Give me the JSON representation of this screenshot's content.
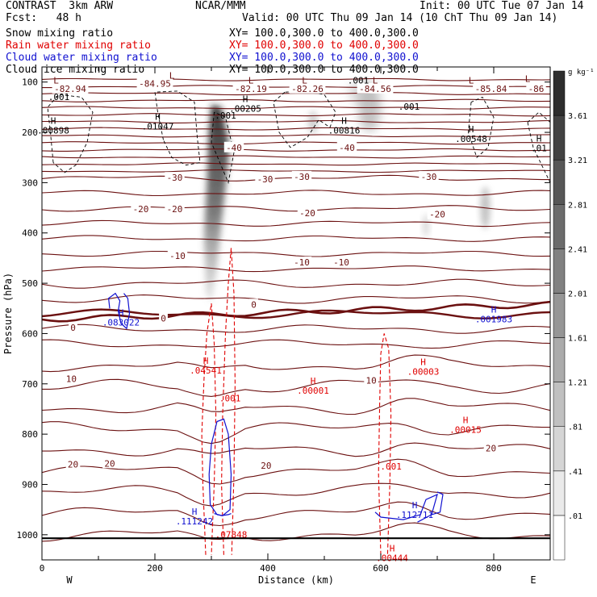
{
  "header": {
    "left": [
      "CONTRAST  3km ARW",
      "Fcst:   48 h"
    ],
    "center": "NCAR/MMM",
    "init": "Init: 00 UTC Tue 07 Jan 14",
    "valid": "Valid: 00 UTC Thu 09 Jan 14 (10 ChT Thu 09 Jan 14)",
    "fields": [
      {
        "name": "Snow mixing ratio",
        "xy": "XY= 100.0,300.0 to 400.0,300.0",
        "color": "#000000"
      },
      {
        "name": "Rain water mixing ratio",
        "xy": "XY= 100.0,300.0 to 400.0,300.0",
        "color": "#e00000"
      },
      {
        "name": "Cloud water mixing ratio",
        "xy": "XY= 100.0,300.0 to 400.0,300.0",
        "color": "#1010d0"
      },
      {
        "name": "Cloud ice mixing ratio",
        "xy": "XY= 100.0,300.0 to 400.0,300.0",
        "color": "#000000"
      }
    ]
  },
  "colors": {
    "temperature": "#6b1010",
    "rain": "#e00000",
    "cloud_water": "#1010d0",
    "ice": "#000000"
  },
  "chart_data": {
    "type": "contour",
    "xlabel": "Distance (km)",
    "ylabel": "Pressure (hPa)",
    "xlim": [
      0,
      900
    ],
    "ylim": [
      1050,
      70
    ],
    "x_ticks": [
      0,
      200,
      400,
      600,
      800
    ],
    "y_ticks": [
      100,
      200,
      300,
      400,
      500,
      600,
      700,
      800,
      900,
      1000
    ],
    "x_end_labels": {
      "left": "W",
      "right": "E"
    },
    "colorbar": {
      "unit": "g kg⁻¹",
      "levels": [
        0.01,
        0.41,
        0.81,
        1.21,
        1.61,
        2.01,
        2.41,
        2.81,
        3.21,
        3.61
      ]
    },
    "temperature_labels": [
      {
        "x": 200,
        "p": 103,
        "text": "-84.95"
      },
      {
        "x": 50,
        "p": 113,
        "text": "-82.94"
      },
      {
        "x": 370,
        "p": 113,
        "text": "-82.19"
      },
      {
        "x": 470,
        "p": 113,
        "text": "-82.26"
      },
      {
        "x": 590,
        "p": 113,
        "text": "-84.56"
      },
      {
        "x": 795,
        "p": 113,
        "text": "-85.84"
      },
      {
        "x": 875,
        "p": 113,
        "text": "-86"
      },
      {
        "x": 340,
        "p": 230,
        "text": "-40"
      },
      {
        "x": 540,
        "p": 230,
        "text": "-40"
      },
      {
        "x": 235,
        "p": 290,
        "text": "-30"
      },
      {
        "x": 395,
        "p": 293,
        "text": "-30"
      },
      {
        "x": 460,
        "p": 288,
        "text": "-30"
      },
      {
        "x": 685,
        "p": 288,
        "text": "-30"
      },
      {
        "x": 175,
        "p": 352,
        "text": "-20"
      },
      {
        "x": 235,
        "p": 352,
        "text": "-20"
      },
      {
        "x": 470,
        "p": 360,
        "text": "-20"
      },
      {
        "x": 700,
        "p": 363,
        "text": "-20"
      },
      {
        "x": 240,
        "p": 445,
        "text": "-10"
      },
      {
        "x": 460,
        "p": 458,
        "text": "-10"
      },
      {
        "x": 530,
        "p": 458,
        "text": "-10"
      },
      {
        "x": 55,
        "p": 588,
        "text": "0"
      },
      {
        "x": 215,
        "p": 570,
        "text": "0"
      },
      {
        "x": 375,
        "p": 542,
        "text": "0"
      },
      {
        "x": 52,
        "p": 690,
        "text": "10"
      },
      {
        "x": 583,
        "p": 693,
        "text": "10"
      },
      {
        "x": 55,
        "p": 860,
        "text": "20"
      },
      {
        "x": 120,
        "p": 858,
        "text": "20"
      },
      {
        "x": 397,
        "p": 862,
        "text": "20"
      },
      {
        "x": 795,
        "p": 828,
        "text": "20"
      }
    ],
    "extrema": [
      {
        "x": 230,
        "p": 93,
        "kind": "L",
        "value": "",
        "color": "#6b1010"
      },
      {
        "x": 25,
        "p": 103,
        "kind": "L",
        "value": "",
        "color": "#6b1010"
      },
      {
        "x": 370,
        "p": 103,
        "kind": "L",
        "value": "",
        "color": "#6b1010"
      },
      {
        "x": 465,
        "p": 103,
        "kind": "L",
        "value": "",
        "color": "#6b1010"
      },
      {
        "x": 590,
        "p": 103,
        "kind": "L",
        "value": "",
        "color": "#6b1010"
      },
      {
        "x": 760,
        "p": 103,
        "kind": "L",
        "value": "",
        "color": "#6b1010"
      },
      {
        "x": 860,
        "p": 100,
        "kind": "L",
        "value": "",
        "color": "#6b1010"
      },
      {
        "x": 20,
        "p": 183,
        "kind": "H",
        "value": ".00898",
        "color": "#000000"
      },
      {
        "x": 205,
        "p": 175,
        "kind": "H",
        "value": ".01047",
        "color": "#000000"
      },
      {
        "x": 360,
        "p": 140,
        "kind": "H",
        "value": ".00205",
        "color": "#000000"
      },
      {
        "x": 535,
        "p": 183,
        "kind": "H",
        "value": ".00816",
        "color": "#000000"
      },
      {
        "x": 760,
        "p": 200,
        "kind": "H",
        "value": ".00548",
        "color": "#000000"
      },
      {
        "x": 880,
        "p": 218,
        "kind": "H",
        "value": ".01",
        "color": "#000000"
      },
      {
        "x": 140,
        "p": 565,
        "kind": "H",
        "value": ".083022",
        "color": "#1010d0"
      },
      {
        "x": 800,
        "p": 558,
        "kind": "H",
        "value": ".001983",
        "color": "#1010d0"
      },
      {
        "x": 290,
        "p": 660,
        "kind": "H",
        "value": ".04541",
        "color": "#e00000"
      },
      {
        "x": 480,
        "p": 700,
        "kind": "H",
        "value": ".00001",
        "color": "#e00000"
      },
      {
        "x": 675,
        "p": 663,
        "kind": "H",
        "value": ".00003",
        "color": "#e00000"
      },
      {
        "x": 750,
        "p": 778,
        "kind": "H",
        "value": ".00015",
        "color": "#e00000"
      },
      {
        "x": 270,
        "p": 960,
        "kind": "H",
        "value": ".111242",
        "color": "#1010d0"
      },
      {
        "x": 335,
        "p": 987,
        "kind": "",
        "value": ".07848",
        "color": "#e00000"
      },
      {
        "x": 660,
        "p": 947,
        "kind": "H",
        "value": ".112711",
        "color": "#1010d0"
      },
      {
        "x": 620,
        "p": 1033,
        "kind": "H",
        "value": ".00444",
        "color": "#e00000"
      }
    ],
    "small_labels": [
      {
        "x": 30,
        "p": 136,
        "text": ".001",
        "color": "#000000"
      },
      {
        "x": 325,
        "p": 173,
        "text": ".001",
        "color": "#000000"
      },
      {
        "x": 560,
        "p": 103,
        "text": ".001",
        "color": "#000000"
      },
      {
        "x": 650,
        "p": 155,
        "text": ".001",
        "color": "#000000"
      },
      {
        "x": 333,
        "p": 735,
        "text": ".001",
        "color": "#e00000"
      },
      {
        "x": 618,
        "p": 870,
        "text": ".001",
        "color": "#e00000"
      }
    ]
  }
}
